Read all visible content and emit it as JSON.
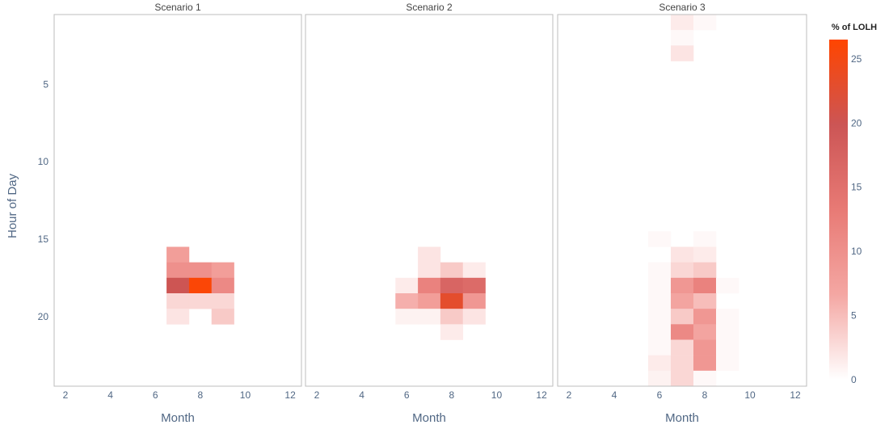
{
  "chart_data": {
    "type": "heatmap",
    "xlabel": "Month",
    "ylabel": "Hour of Day",
    "x_ticks": [
      2,
      4,
      6,
      8,
      10,
      12
    ],
    "y_ticks": [
      5,
      10,
      15,
      20
    ],
    "xlim": [
      1.5,
      12.5
    ],
    "ylim": [
      0.5,
      24.5
    ],
    "y_reversed": true,
    "colorbar": {
      "title": "% of LOLH",
      "range": [
        0,
        26.5
      ],
      "ticks": [
        0,
        5,
        10,
        15,
        20,
        25
      ],
      "stops": [
        "#ffffff",
        "#f4a7a3",
        "#e87a75",
        "#cc5555",
        "#ff4500"
      ]
    },
    "panels": [
      {
        "title": "Scenario 1",
        "cells": [
          {
            "month": 7,
            "hour": 16,
            "value": 8
          },
          {
            "month": 7,
            "hour": 17,
            "value": 10
          },
          {
            "month": 8,
            "hour": 17,
            "value": 10
          },
          {
            "month": 9,
            "hour": 17,
            "value": 8
          },
          {
            "month": 7,
            "hour": 18,
            "value": 20
          },
          {
            "month": 8,
            "hour": 18,
            "value": 26
          },
          {
            "month": 9,
            "hour": 18,
            "value": 11
          },
          {
            "month": 7,
            "hour": 19,
            "value": 3
          },
          {
            "month": 8,
            "hour": 19,
            "value": 3
          },
          {
            "month": 9,
            "hour": 19,
            "value": 3
          },
          {
            "month": 7,
            "hour": 20,
            "value": 2
          },
          {
            "month": 9,
            "hour": 20,
            "value": 4
          }
        ]
      },
      {
        "title": "Scenario 2",
        "cells": [
          {
            "month": 7,
            "hour": 16,
            "value": 2
          },
          {
            "month": 7,
            "hour": 17,
            "value": 2
          },
          {
            "month": 8,
            "hour": 17,
            "value": 4
          },
          {
            "month": 9,
            "hour": 17,
            "value": 1.5
          },
          {
            "month": 6,
            "hour": 18,
            "value": 1.5
          },
          {
            "month": 7,
            "hour": 18,
            "value": 12
          },
          {
            "month": 8,
            "hour": 18,
            "value": 17
          },
          {
            "month": 9,
            "hour": 18,
            "value": 16
          },
          {
            "month": 6,
            "hour": 19,
            "value": 6
          },
          {
            "month": 7,
            "hour": 19,
            "value": 8
          },
          {
            "month": 8,
            "hour": 19,
            "value": 23
          },
          {
            "month": 9,
            "hour": 19,
            "value": 9
          },
          {
            "month": 6,
            "hour": 20,
            "value": 1
          },
          {
            "month": 7,
            "hour": 20,
            "value": 1
          },
          {
            "month": 8,
            "hour": 20,
            "value": 4
          },
          {
            "month": 9,
            "hour": 20,
            "value": 2
          },
          {
            "month": 8,
            "hour": 21,
            "value": 1.5
          }
        ]
      },
      {
        "title": "Scenario 3",
        "cells": [
          {
            "month": 7,
            "hour": 1,
            "value": 1.5
          },
          {
            "month": 8,
            "hour": 1,
            "value": 0.5
          },
          {
            "month": 7,
            "hour": 2,
            "value": 0.5
          },
          {
            "month": 7,
            "hour": 3,
            "value": 2
          },
          {
            "month": 6,
            "hour": 15,
            "value": 0.5
          },
          {
            "month": 8,
            "hour": 15,
            "value": 0.5
          },
          {
            "month": 7,
            "hour": 16,
            "value": 2
          },
          {
            "month": 8,
            "hour": 16,
            "value": 1.5
          },
          {
            "month": 6,
            "hour": 17,
            "value": 0.5
          },
          {
            "month": 7,
            "hour": 17,
            "value": 3
          },
          {
            "month": 8,
            "hour": 17,
            "value": 4
          },
          {
            "month": 6,
            "hour": 18,
            "value": 0.5
          },
          {
            "month": 7,
            "hour": 18,
            "value": 9
          },
          {
            "month": 8,
            "hour": 18,
            "value": 12
          },
          {
            "month": 9,
            "hour": 18,
            "value": 0.5
          },
          {
            "month": 6,
            "hour": 19,
            "value": 0.5
          },
          {
            "month": 7,
            "hour": 19,
            "value": 7
          },
          {
            "month": 8,
            "hour": 19,
            "value": 5
          },
          {
            "month": 6,
            "hour": 20,
            "value": 0.5
          },
          {
            "month": 7,
            "hour": 20,
            "value": 4
          },
          {
            "month": 8,
            "hour": 20,
            "value": 9
          },
          {
            "month": 9,
            "hour": 20,
            "value": 0.5
          },
          {
            "month": 6,
            "hour": 21,
            "value": 0.5
          },
          {
            "month": 7,
            "hour": 21,
            "value": 11
          },
          {
            "month": 8,
            "hour": 21,
            "value": 7
          },
          {
            "month": 9,
            "hour": 21,
            "value": 0.5
          },
          {
            "month": 6,
            "hour": 22,
            "value": 0.5
          },
          {
            "month": 7,
            "hour": 22,
            "value": 3
          },
          {
            "month": 8,
            "hour": 22,
            "value": 9
          },
          {
            "month": 9,
            "hour": 22,
            "value": 0.5
          },
          {
            "month": 6,
            "hour": 23,
            "value": 1.5
          },
          {
            "month": 7,
            "hour": 23,
            "value": 3
          },
          {
            "month": 8,
            "hour": 23,
            "value": 9
          },
          {
            "month": 9,
            "hour": 23,
            "value": 0.5
          },
          {
            "month": 6,
            "hour": 24,
            "value": 1
          },
          {
            "month": 7,
            "hour": 24,
            "value": 3
          },
          {
            "month": 8,
            "hour": 24,
            "value": 0.5
          }
        ]
      }
    ]
  }
}
